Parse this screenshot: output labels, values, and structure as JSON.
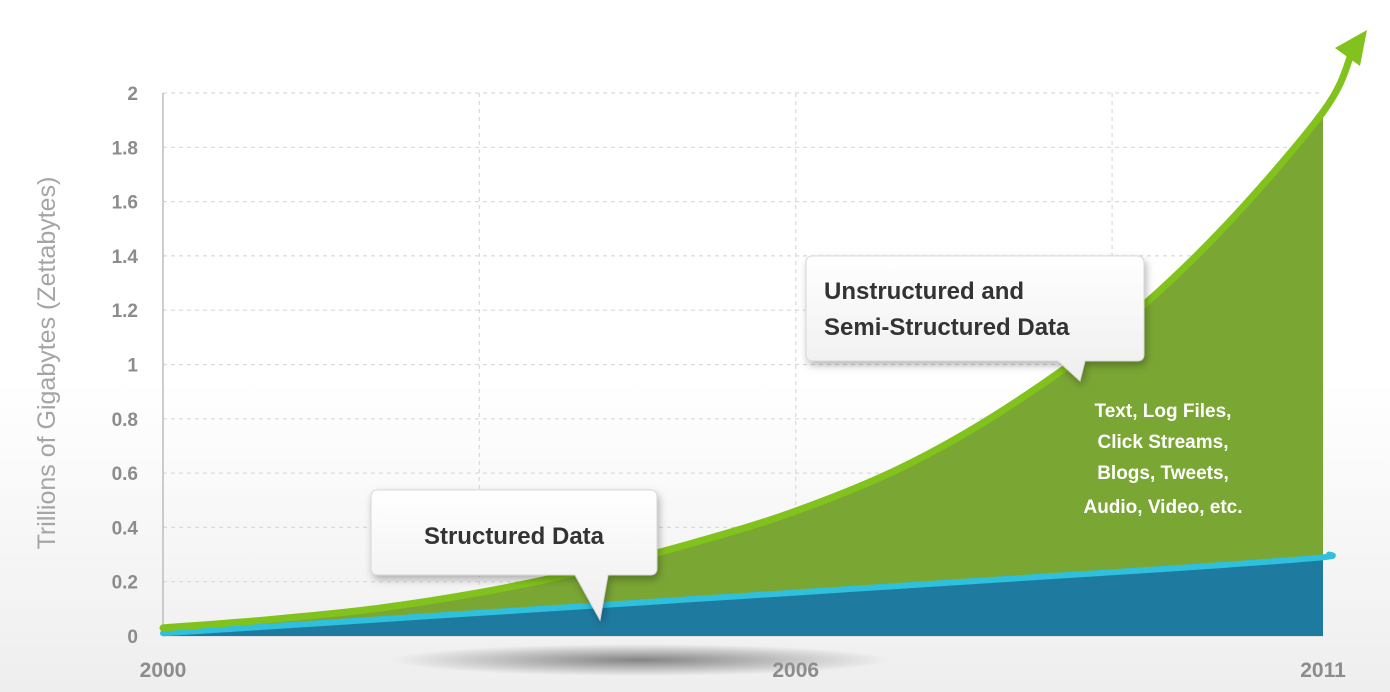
{
  "chart_data": {
    "type": "area",
    "ylabel": "Trillions of Gigabytes (Zettabytes)",
    "xlabel": "",
    "ylim": [
      0,
      2
    ],
    "xlim": [
      2000,
      2011
    ],
    "y_ticks": [
      "0",
      "0.2",
      "0.4",
      "0.6",
      "0.8",
      "1",
      "1.2",
      "1.4",
      "1.6",
      "1.8",
      "2"
    ],
    "x_ticks": [
      "2000",
      "2006",
      "2011"
    ],
    "grid": true,
    "x": [
      2000,
      2001,
      2002,
      2003,
      2004,
      2005,
      2006,
      2007,
      2008,
      2009,
      2010,
      2011
    ],
    "series": [
      {
        "name": "Structured Data",
        "color": "#1f7aa0",
        "line_color": "#2ec0dc",
        "values": [
          0.01,
          0.035,
          0.06,
          0.085,
          0.11,
          0.135,
          0.16,
          0.185,
          0.21,
          0.235,
          0.26,
          0.29
        ]
      },
      {
        "name": "Unstructured and Semi-Structured Data",
        "color": "#7aa634",
        "line_color": "#82c21c",
        "values": [
          0.03,
          0.06,
          0.1,
          0.16,
          0.24,
          0.34,
          0.46,
          0.62,
          0.84,
          1.12,
          1.48,
          1.93
        ]
      }
    ],
    "annotations": {
      "structured_title": "Structured Data",
      "unstructured_line1": "Unstructured and",
      "unstructured_line2": "Semi-Structured Data",
      "examples": [
        "Text, Log Files,",
        "Click Streams,",
        "Blogs, Tweets,",
        "Audio, Video, etc."
      ]
    }
  }
}
